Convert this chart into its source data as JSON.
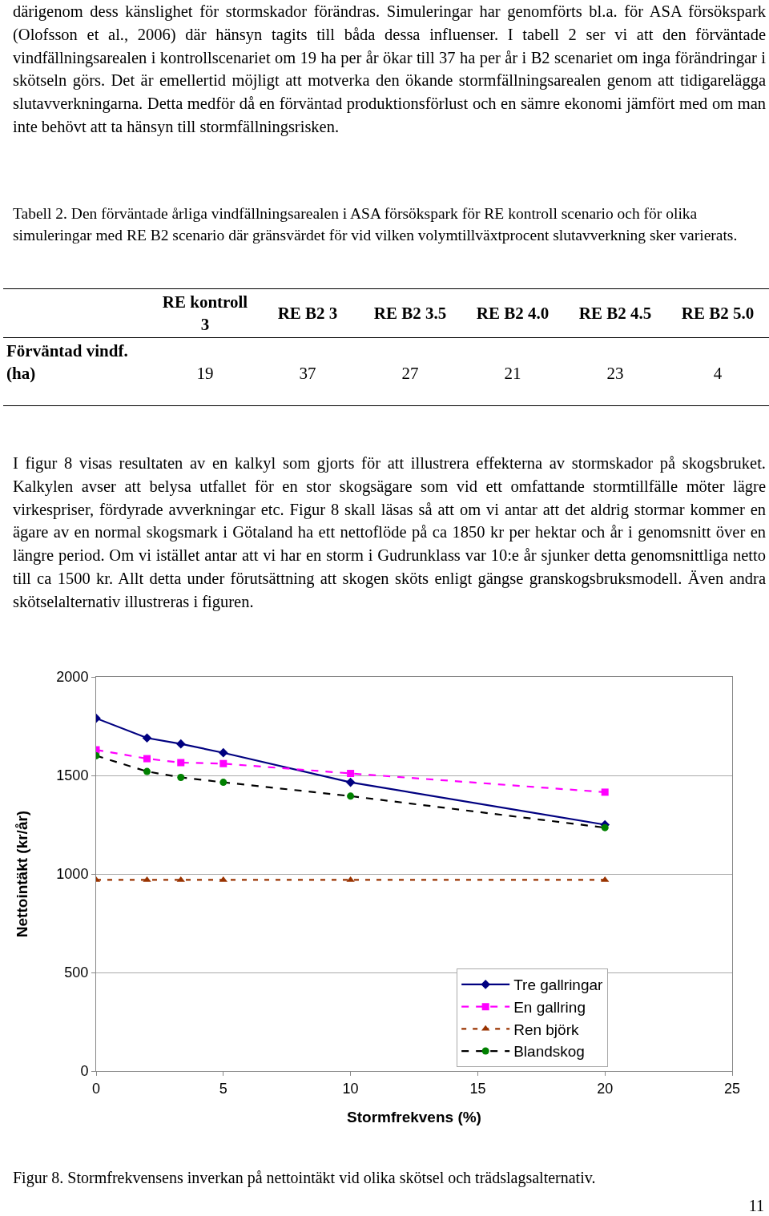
{
  "chart_data": [
    {
      "type": "other",
      "annotations": [
        "därigenom dess känslighet för stormskador förändras. Simuleringar har genomförts bl.a. för ASA försökspark (Olofsson et al., 2006) där hänsyn tagits till båda dessa influenser. I tabell 2 ser vi att den förväntade vindfällningsarealen i kontrollscenariet om 19 ha per år ökar till 37 ha per år i B2 scenariet om inga förändringar i skötseln görs. Det är emellertid möjligt att motverka den ökande stormfällningsarealen genom att tidigarelägga slutavverkningarna. Detta medför då en förväntad produktionsförlust och en sämre ekonomi jämfört med om man inte behövt att ta hänsyn till stormfällningsrisken.",
        "Tabell 2. Den förväntade årliga vindfällningsarealen i ASA försökspark för RE kontroll scenario och för olika simuleringar med RE B2 scenario där gränsvärdet för vid vilken volymtillväxtprocent slutavverkning sker varierats.",
        "I figur 8 visas resultaten av en kalkyl som gjorts för att illustrera effekterna av stormskador på skogsbruket. Kalkylen avser att belysa utfallet för en stor skogsägare som vid ett omfattande stormtillfälle möter lägre virkespriser, fördyrade avverkningar etc. Figur 8 skall läsas så att om vi antar att det aldrig stormar kommer en ägare av en normal skogsmark i Götaland ha ett nettoflöde på ca 1850 kr per hektar och år i genomsnitt över en längre period. Om vi istället antar att vi har en storm i Gudrunklass var 10:e år sjunker detta genomsnittliga netto till ca 1500 kr. Allt detta under förutsättning att skogen sköts enligt gängse granskogsbruksmodell. Även andra skötselalternativ illustreras i figuren."
      ],
      "categories": [
        "RE kontroll 3",
        "RE B2 3",
        "RE B2 3.5",
        "RE B2 4.0",
        "RE B2 4.5",
        "RE B2 5.0"
      ],
      "ylabel": "Förväntad vindf. (ha)",
      "values": [
        19,
        37,
        27,
        21,
        23,
        4
      ],
      "data_labels": true
    },
    {
      "type": "line",
      "xlabel": "Stormfrekvens (%)",
      "ylabel": "Nettointäkt (kr/år)",
      "annotations": [
        "Figur 8. Stormfrekvensens inverkan på nettointäkt vid olika skötsel och trädslagsalternativ.",
        "11"
      ],
      "x": [
        0,
        2,
        3.33,
        5,
        10,
        20
      ],
      "series": [
        {
          "name": "Tre gallringar",
          "color": "#000080",
          "marker": "diamond",
          "line_style": "solid",
          "values": [
            1790,
            1690,
            1660,
            1615,
            1465,
            1250
          ]
        },
        {
          "name": "En gallring",
          "color": "#ff00ff",
          "marker": "square",
          "line_style": "dashed",
          "values": [
            1630,
            1585,
            1565,
            1560,
            1510,
            1415
          ]
        },
        {
          "name": "Ren björk",
          "color": "#993300",
          "marker": "triangle",
          "line_style": "dotted",
          "values": [
            970,
            970,
            970,
            970,
            970,
            970
          ]
        },
        {
          "name": "Blandskog",
          "color": "#000000",
          "colors": [
            "#008000",
            "#008000",
            "#008000",
            "#008000",
            "#008000",
            "#008000"
          ],
          "marker": "circle",
          "line_style": "dashed",
          "values": [
            1600,
            1520,
            1490,
            1465,
            1395,
            1235
          ]
        }
      ],
      "xlim": [
        0,
        25
      ],
      "xticks": [
        0,
        5,
        10,
        15,
        20,
        25
      ],
      "ylim": [
        0,
        2000
      ],
      "yticks": [
        0,
        500,
        1000,
        1500,
        2000
      ],
      "grid": "y",
      "legend": "bottom right"
    }
  ]
}
